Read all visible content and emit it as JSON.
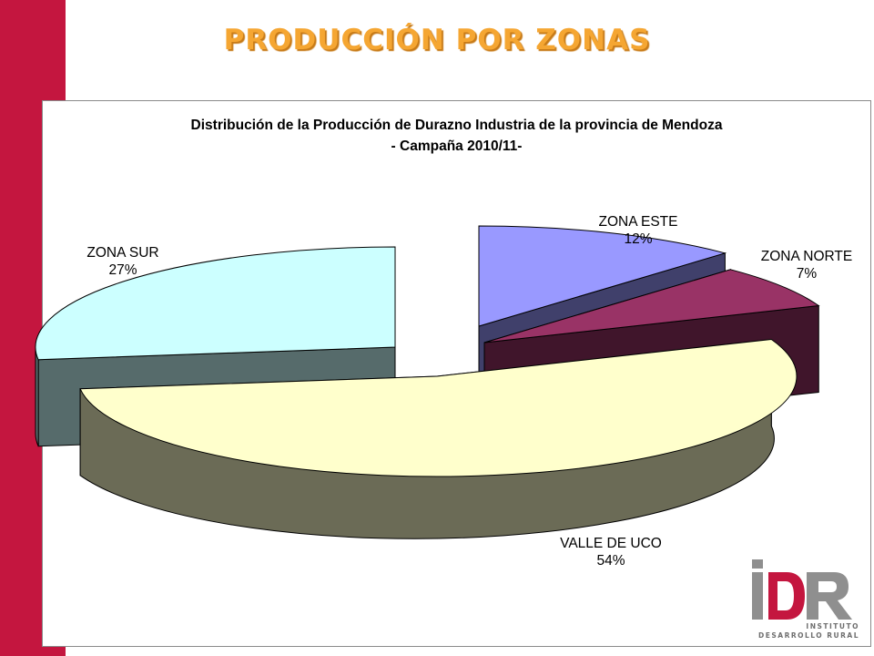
{
  "slide": {
    "title": "PRODUCCIÓN POR ZONAS"
  },
  "colors": {
    "sidebar": "#c4163f",
    "title_text": "#f5a632"
  },
  "chart_data": {
    "type": "pie",
    "variant": "3d-exploded",
    "title_line1": "Distribución de la Producción de Durazno Industria de la provincia de Mendoza",
    "title_line2": "- Campaña 2010/11-",
    "slices": [
      {
        "label": "ZONA ESTE",
        "value": 12,
        "value_label": "12%",
        "color": "#9999ff"
      },
      {
        "label": "ZONA NORTE",
        "value": 7,
        "value_label": "7%",
        "color": "#993366"
      },
      {
        "label": "VALLE DE UCO",
        "value": 54,
        "value_label": "54%",
        "color": "#ffffcc"
      },
      {
        "label": "ZONA SUR",
        "value": 27,
        "value_label": "27%",
        "color": "#ccffff"
      }
    ]
  },
  "logo": {
    "mark": "IDR",
    "line1": "INSTITUTO",
    "line2": "DESARROLLO RURAL"
  }
}
